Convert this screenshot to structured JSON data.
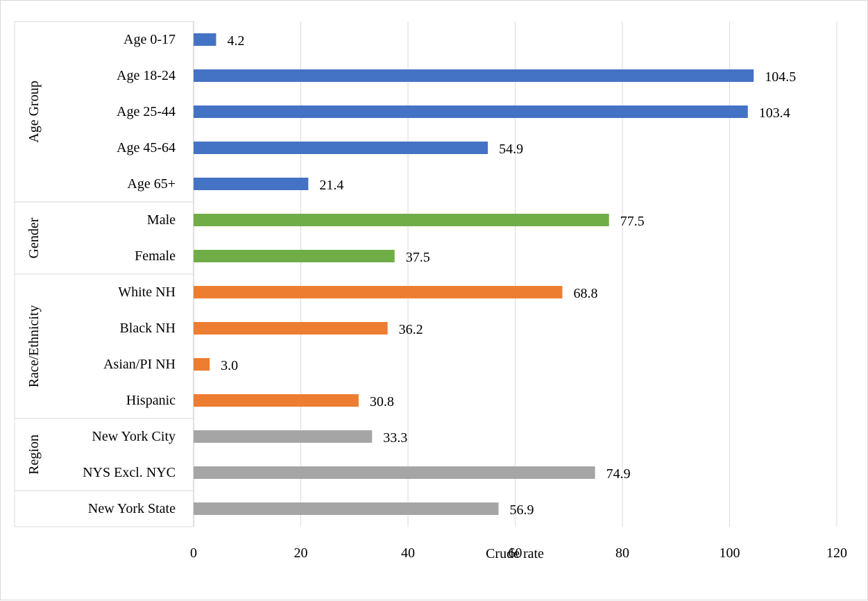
{
  "chart_data": {
    "type": "bar",
    "orientation": "horizontal",
    "xlabel": "Crude rate",
    "xlim": [
      0,
      120
    ],
    "xticks": [
      0,
      20,
      40,
      60,
      80,
      100,
      120
    ],
    "grid": "vertical",
    "groups": [
      {
        "name": "Age Group",
        "color": "#4472C4",
        "categories": [
          "Age 0-17",
          "Age 18-24",
          "Age 25-44",
          "Age 45-64",
          "Age 65+"
        ],
        "values": [
          4.2,
          104.5,
          103.4,
          54.9,
          21.4
        ],
        "value_labels": [
          "4.2",
          "104.5",
          "103.4",
          "54.9",
          "21.4"
        ]
      },
      {
        "name": "Gender",
        "color": "#70AD47",
        "categories": [
          "Male",
          "Female"
        ],
        "values": [
          77.5,
          37.5
        ],
        "value_labels": [
          "77.5",
          "37.5"
        ]
      },
      {
        "name": "Race/Ethnicity",
        "color": "#ED7D31",
        "categories": [
          "White NH",
          "Black NH",
          "Asian/PI NH",
          "Hispanic"
        ],
        "values": [
          68.8,
          36.2,
          3.0,
          30.8
        ],
        "value_labels": [
          "68.8",
          "36.2",
          "3.0",
          "30.8"
        ]
      },
      {
        "name": "Region",
        "color": "#A5A5A5",
        "categories": [
          "New York City",
          "NYS Excl. NYC"
        ],
        "values": [
          33.3,
          74.9
        ],
        "value_labels": [
          "33.3",
          "74.9"
        ]
      },
      {
        "name": "",
        "color": "#A5A5A5",
        "categories": [
          "New York State"
        ],
        "values": [
          56.9
        ],
        "value_labels": [
          "56.9"
        ]
      }
    ]
  }
}
